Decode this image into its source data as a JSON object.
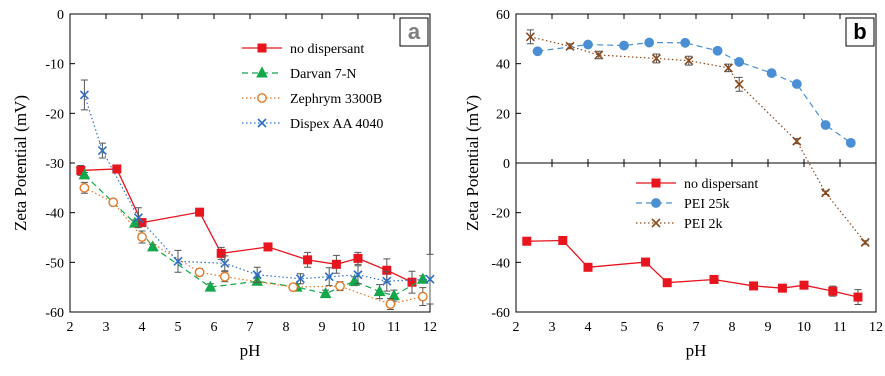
{
  "chart_data": [
    {
      "type": "line",
      "panel_label": "a",
      "xlabel": "pH",
      "ylabel": "Zeta Potential (mV)",
      "xlim": [
        2,
        12
      ],
      "ylim": [
        -60,
        0
      ],
      "xticks": [
        "2",
        "3",
        "4",
        "5",
        "6",
        "7",
        "8",
        "9",
        "10",
        "11",
        "12"
      ],
      "yticks": [
        "0",
        "-10",
        "-20",
        "-30",
        "-40",
        "-50",
        "-60"
      ],
      "legend_position": "top-right",
      "series": [
        {
          "name": "no dispersant",
          "color": "#e8141e",
          "dash": "solid",
          "marker": "square",
          "x": [
            2.3,
            3.3,
            4.0,
            5.6,
            6.2,
            7.5,
            8.6,
            9.4,
            10.0,
            10.8,
            11.5
          ],
          "y": [
            -31.5,
            -31.2,
            -42.0,
            -39.9,
            -48.2,
            -46.9,
            -49.5,
            -50.4,
            -49.2,
            -51.6,
            -54.0
          ],
          "err": [
            1.0,
            0.4,
            0.5,
            0.6,
            1.2,
            0.6,
            1.5,
            1.8,
            1.2,
            2.3,
            2.2
          ]
        },
        {
          "name": "Darvan 7-N",
          "color": "#13a84a",
          "dash": "dashed",
          "marker": "triangle",
          "x": [
            2.4,
            3.8,
            4.3,
            5.9,
            7.2,
            8.3,
            9.1,
            9.9,
            10.6,
            11.0,
            11.8
          ],
          "y": [
            -32.4,
            -42.1,
            -46.9,
            -55.0,
            -53.8,
            -55.0,
            -56.3,
            -53.8,
            -55.9,
            -56.7,
            -53.4
          ],
          "err": [
            0.5,
            0.6,
            0.5,
            0.7,
            0.7,
            0.6,
            0.7,
            0.9,
            1.4,
            1.1,
            0.7
          ]
        },
        {
          "name": "Zephrym 3300B",
          "color": "#e07a2a",
          "dash": "dotted",
          "marker": "circle",
          "x": [
            2.4,
            3.2,
            4.0,
            5.6,
            6.3,
            8.2,
            9.5,
            10.9,
            11.8
          ],
          "y": [
            -35.0,
            -37.9,
            -44.9,
            -52.0,
            -52.9,
            -55.0,
            -54.8,
            -58.4,
            -56.9
          ],
          "err": [
            1.1,
            0.6,
            1.2,
            0.7,
            1.0,
            0.6,
            0.9,
            1.1,
            1.8
          ]
        },
        {
          "name": "Dispex AA 4040",
          "color": "#2d6fc9",
          "dash": "dotted",
          "marker": "x",
          "x": [
            2.4,
            2.9,
            3.9,
            5.0,
            6.3,
            7.2,
            8.4,
            9.2,
            10.0,
            10.8,
            12.0
          ],
          "y": [
            -16.3,
            -27.5,
            -41.0,
            -49.8,
            -50.2,
            -52.5,
            -53.3,
            -52.9,
            -52.5,
            -53.8,
            -53.4
          ],
          "err": [
            3.0,
            1.5,
            2.0,
            2.2,
            1.5,
            1.5,
            1.0,
            1.8,
            1.8,
            2.0,
            5.0
          ]
        }
      ]
    },
    {
      "type": "line",
      "panel_label": "b",
      "xlabel": "pH",
      "ylabel": "Zeta Potential (mV)",
      "xlim": [
        2,
        12
      ],
      "ylim": [
        -60,
        60
      ],
      "xticks": [
        "2",
        "3",
        "4",
        "5",
        "6",
        "7",
        "8",
        "9",
        "10",
        "11",
        "12"
      ],
      "yticks": [
        "60",
        "40",
        "20",
        "0",
        "-20",
        "-40",
        "-60"
      ],
      "legend_position": "center-right",
      "series": [
        {
          "name": "no dispersant",
          "color": "#e8141e",
          "dash": "solid",
          "marker": "square",
          "x": [
            2.3,
            3.3,
            4.0,
            5.6,
            6.2,
            7.5,
            8.6,
            9.4,
            10.0,
            10.8,
            11.5
          ],
          "y": [
            -31.5,
            -31.2,
            -42.0,
            -39.9,
            -48.2,
            -46.9,
            -49.5,
            -50.4,
            -49.2,
            -51.6,
            -54.0
          ],
          "err": [
            1.5,
            0.6,
            0.8,
            0.8,
            1.0,
            0.8,
            1.0,
            1.2,
            1.0,
            2.0,
            3.0
          ]
        },
        {
          "name": "PEI 25k",
          "color": "#4a8fd4",
          "dash": "dashed",
          "marker": "circle",
          "x": [
            2.6,
            4.0,
            5.0,
            5.7,
            6.7,
            7.6,
            8.2,
            9.1,
            9.8,
            10.6,
            11.3
          ],
          "y": [
            45.0,
            47.7,
            47.3,
            48.5,
            48.4,
            45.2,
            40.7,
            36.2,
            31.8,
            15.3,
            8.1
          ],
          "err": [
            1.0,
            1.0,
            0.7,
            0.8,
            0.7,
            0.9,
            0.8,
            0.7,
            0.8,
            0.8,
            1.0
          ]
        },
        {
          "name": "PEI 2k",
          "color": "#8b4a1c",
          "dash": "dotted",
          "marker": "x",
          "x": [
            2.4,
            3.5,
            4.3,
            5.9,
            6.8,
            7.9,
            8.2,
            9.8,
            10.6,
            11.7
          ],
          "y": [
            50.8,
            47.0,
            43.5,
            42.1,
            41.2,
            38.3,
            31.7,
            8.8,
            -12.0,
            -32.0
          ],
          "err": [
            2.8,
            1.0,
            1.5,
            1.8,
            1.8,
            1.5,
            2.8,
            1.0,
            0.7,
            0.7
          ]
        }
      ]
    }
  ]
}
